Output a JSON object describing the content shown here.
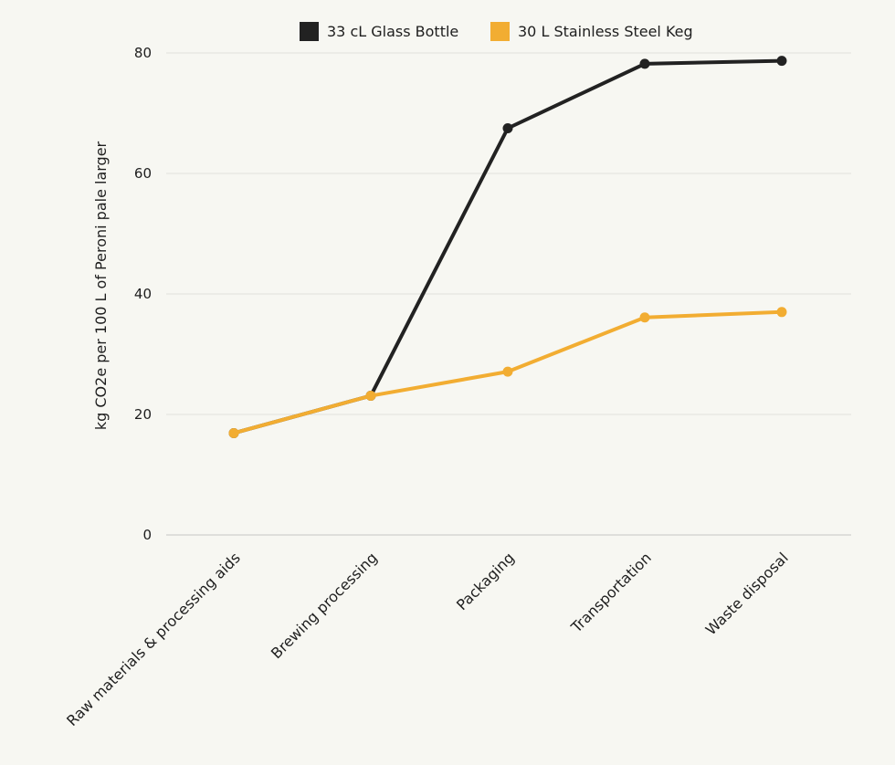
{
  "chart_data": {
    "type": "line",
    "categories": [
      "Raw materials & processing aids",
      "Brewing processing",
      "Packaging",
      "Transportation",
      "Waste disposal"
    ],
    "series": [
      {
        "name": "33 cL Glass Bottle",
        "color": "#222222",
        "values": [
          16.9,
          23.1,
          67.5,
          78.2,
          78.7
        ]
      },
      {
        "name": "30 L Stainless Steel Keg",
        "color": "#f2ad32",
        "values": [
          16.9,
          23.1,
          27.1,
          36.1,
          37.0
        ]
      }
    ],
    "title": "",
    "xlabel": "",
    "ylabel": "kg CO2e per 100 L of  Peroni pale larger",
    "ylim": [
      0,
      80
    ],
    "yticks": [
      "0",
      "20",
      "40",
      "60",
      "80"
    ],
    "grid": true,
    "legend_position": "top"
  }
}
